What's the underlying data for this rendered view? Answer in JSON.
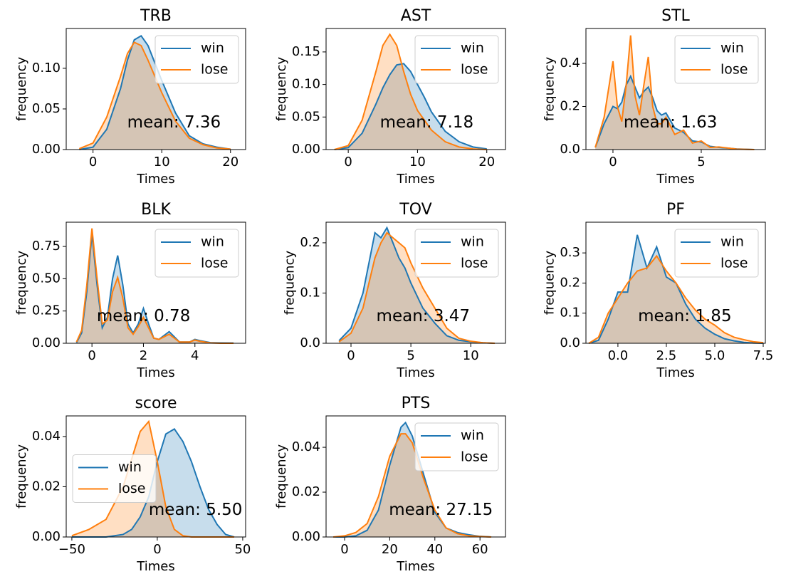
{
  "chart_data": [
    {
      "type": "area",
      "title": "TRB",
      "xlabel": "Times",
      "ylabel": "frequency",
      "annotation": "mean: 7.36",
      "legend": "upper right",
      "xlim": [
        -3.9,
        22.2
      ],
      "ylim": [
        0,
        0.149
      ],
      "xticks": [
        0,
        10,
        20
      ],
      "yticks": [
        {
          "value": 0,
          "label": "0.00"
        },
        0.05,
        {
          "value": 0.1,
          "label": "0.10"
        }
      ],
      "x": [
        -2,
        0,
        2,
        4,
        5,
        6,
        7,
        8,
        10,
        12,
        14,
        16,
        18,
        20
      ],
      "series": [
        {
          "name": "win",
          "color": "#1f77b4",
          "values": [
            0,
            0.003,
            0.025,
            0.075,
            0.11,
            0.135,
            0.14,
            0.128,
            0.085,
            0.045,
            0.017,
            0.007,
            0.003,
            0.0005
          ]
        },
        {
          "name": "lose",
          "color": "#ff7f0e",
          "values": [
            0.001,
            0.008,
            0.04,
            0.09,
            0.118,
            0.132,
            0.128,
            0.11,
            0.07,
            0.035,
            0.014,
            0.006,
            0.002,
            0.0005
          ]
        }
      ]
    },
    {
      "type": "area",
      "title": "AST",
      "xlabel": "Times",
      "ylabel": "frequency",
      "annotation": "mean: 7.18",
      "legend": "upper right",
      "xlim": [
        -3.2,
        22.7
      ],
      "ylim": [
        0,
        0.186
      ],
      "xticks": [
        0,
        10,
        20
      ],
      "yticks": [
        {
          "value": 0,
          "label": "0.00"
        },
        0.05,
        {
          "value": 0.1,
          "label": "0.10"
        },
        0.15
      ],
      "x": [
        -2,
        0,
        2,
        4,
        5,
        6,
        7,
        8,
        9,
        10,
        11,
        12,
        14,
        16,
        18,
        20
      ],
      "series": [
        {
          "name": "win",
          "color": "#1f77b4",
          "values": [
            0,
            0.003,
            0.025,
            0.07,
            0.095,
            0.115,
            0.13,
            0.132,
            0.12,
            0.1,
            0.08,
            0.058,
            0.028,
            0.012,
            0.004,
            0.001
          ]
        },
        {
          "name": "lose",
          "color": "#ff7f0e",
          "values": [
            0,
            0.006,
            0.045,
            0.12,
            0.16,
            0.177,
            0.16,
            0.12,
            0.085,
            0.06,
            0.045,
            0.03,
            0.012,
            0.004,
            0.001,
            0
          ]
        }
      ]
    },
    {
      "type": "area",
      "title": "STL",
      "xlabel": "Times",
      "ylabel": "frequency",
      "annotation": "mean: 1.63",
      "legend": "upper right",
      "xlim": [
        -1.53,
        8.63
      ],
      "ylim": [
        0,
        0.562
      ],
      "xticks": [
        0,
        5
      ],
      "yticks": [
        {
          "value": 0,
          "label": "0.0"
        },
        0.2,
        0.4
      ],
      "x": [
        -1,
        -0.5,
        0,
        0.25,
        0.5,
        0.75,
        1,
        1.25,
        1.5,
        1.75,
        2,
        2.25,
        2.5,
        2.75,
        3,
        3.5,
        4,
        4.5,
        5,
        5.5,
        6,
        7,
        8
      ],
      "series": [
        {
          "name": "win",
          "color": "#1f77b4",
          "values": [
            0.01,
            0.12,
            0.2,
            0.19,
            0.22,
            0.3,
            0.34,
            0.29,
            0.24,
            0.27,
            0.29,
            0.24,
            0.18,
            0.16,
            0.17,
            0.1,
            0.08,
            0.04,
            0.035,
            0.015,
            0.01,
            0.003,
            0
          ]
        },
        {
          "name": "lose",
          "color": "#ff7f0e",
          "values": [
            0.01,
            0.15,
            0.41,
            0.2,
            0.13,
            0.3,
            0.53,
            0.25,
            0.16,
            0.3,
            0.43,
            0.2,
            0.12,
            0.12,
            0.15,
            0.07,
            0.09,
            0.03,
            0.04,
            0.01,
            0.012,
            0.002,
            0
          ]
        }
      ]
    },
    {
      "type": "area",
      "title": "BLK",
      "xlabel": "Times",
      "ylabel": "frequency",
      "annotation": "mean: 0.78",
      "legend": "upper right",
      "xlim": [
        -1.0,
        5.97
      ],
      "ylim": [
        0,
        0.938
      ],
      "xticks": [
        0,
        2,
        4
      ],
      "yticks": [
        {
          "value": 0,
          "label": "0.00"
        },
        0.25,
        {
          "value": 0.5,
          "label": "0.50"
        },
        0.75
      ],
      "x": [
        -0.6,
        -0.4,
        -0.2,
        0,
        0.2,
        0.4,
        0.6,
        0.8,
        1,
        1.2,
        1.4,
        1.6,
        1.8,
        2,
        2.2,
        2.4,
        2.6,
        2.8,
        3,
        3.2,
        3.4,
        3.8,
        4,
        4.2,
        4.6,
        5,
        5.5
      ],
      "series": [
        {
          "name": "win",
          "color": "#1f77b4",
          "values": [
            0.005,
            0.08,
            0.4,
            0.85,
            0.45,
            0.12,
            0.2,
            0.5,
            0.68,
            0.45,
            0.15,
            0.08,
            0.15,
            0.27,
            0.15,
            0.04,
            0.03,
            0.06,
            0.09,
            0.05,
            0.01,
            0.01,
            0.03,
            0.02,
            0.005,
            0.003,
            0.002
          ]
        },
        {
          "name": "lose",
          "color": "#ff7f0e",
          "values": [
            0.01,
            0.1,
            0.45,
            0.89,
            0.5,
            0.15,
            0.18,
            0.4,
            0.51,
            0.35,
            0.12,
            0.07,
            0.13,
            0.2,
            0.12,
            0.04,
            0.03,
            0.05,
            0.07,
            0.04,
            0.01,
            0.01,
            0.025,
            0.015,
            0.003,
            0,
            0
          ]
        }
      ]
    },
    {
      "type": "area",
      "title": "TOV",
      "xlabel": "Times",
      "ylabel": "frequency",
      "annotation": "mean: 3.47",
      "legend": "upper right",
      "xlim": [
        -2.08,
        12.9
      ],
      "ylim": [
        0,
        0.241
      ],
      "xticks": [
        0,
        5,
        10
      ],
      "yticks": [
        {
          "value": 0,
          "label": "0.0"
        },
        0.1,
        0.2
      ],
      "x": [
        -1,
        0,
        1,
        1.5,
        2,
        2.5,
        3,
        3.5,
        4,
        4.5,
        5,
        6,
        7,
        8,
        9,
        10,
        11,
        12
      ],
      "series": [
        {
          "name": "win",
          "color": "#1f77b4",
          "values": [
            0.005,
            0.03,
            0.1,
            0.16,
            0.22,
            0.21,
            0.23,
            0.2,
            0.17,
            0.15,
            0.12,
            0.07,
            0.04,
            0.015,
            0.006,
            0.003,
            0.001,
            0
          ]
        },
        {
          "name": "lose",
          "color": "#ff7f0e",
          "values": [
            0.003,
            0.02,
            0.07,
            0.12,
            0.17,
            0.2,
            0.22,
            0.21,
            0.2,
            0.19,
            0.16,
            0.11,
            0.07,
            0.03,
            0.01,
            0.004,
            0.001,
            0
          ]
        }
      ]
    },
    {
      "type": "area",
      "title": "PF",
      "xlabel": "Times",
      "ylabel": "frequency",
      "annotation": "mean: 1.85",
      "legend": "upper right",
      "xlim": [
        -1.65,
        7.61
      ],
      "ylim": [
        0,
        0.402
      ],
      "xticks": [
        {
          "value": 0,
          "label": "0.0"
        },
        2.5,
        {
          "value": 5,
          "label": "5.0"
        },
        7.5
      ],
      "yticks": [
        {
          "value": 0,
          "label": "0.0"
        },
        0.1,
        0.2,
        0.3
      ],
      "x": [
        -1.5,
        -1,
        -0.5,
        0,
        0.5,
        1,
        1.5,
        2,
        2.5,
        3,
        3.5,
        4,
        4.5,
        5,
        5.5,
        6,
        6.5,
        7,
        7.5
      ],
      "series": [
        {
          "name": "win",
          "color": "#1f77b4",
          "values": [
            0,
            0.01,
            0.08,
            0.17,
            0.17,
            0.36,
            0.25,
            0.32,
            0.22,
            0.2,
            0.13,
            0.08,
            0.05,
            0.03,
            0.015,
            0.008,
            0.003,
            0.001,
            0
          ]
        },
        {
          "name": "lose",
          "color": "#ff7f0e",
          "values": [
            0,
            0.02,
            0.1,
            0.15,
            0.2,
            0.24,
            0.25,
            0.29,
            0.24,
            0.2,
            0.15,
            0.11,
            0.08,
            0.06,
            0.035,
            0.02,
            0.012,
            0.005,
            0.002
          ]
        }
      ]
    },
    {
      "type": "area",
      "title": "score",
      "xlabel": "Times",
      "ylabel": "frequency",
      "annotation": "mean: 5.50",
      "legend": "center left",
      "xlim": [
        -53.3,
        51.7
      ],
      "ylim": [
        0,
        0.0482
      ],
      "xticks": [
        {
          "value": -50,
          "label": "−50"
        },
        0,
        50
      ],
      "yticks": [
        {
          "value": 0,
          "label": "0.00"
        },
        0.02,
        0.04
      ],
      "x": [
        -50,
        -40,
        -30,
        -20,
        -15,
        -10,
        -5,
        0,
        5,
        10,
        15,
        20,
        25,
        30,
        35,
        40,
        45
      ],
      "series": [
        {
          "name": "win",
          "color": "#1f77b4",
          "values": [
            0,
            0,
            0,
            0.001,
            0.003,
            0.008,
            0.016,
            0.03,
            0.041,
            0.043,
            0.038,
            0.03,
            0.02,
            0.011,
            0.005,
            0.001,
            0
          ]
        },
        {
          "name": "lose",
          "color": "#ff7f0e",
          "values": [
            0.0005,
            0.003,
            0.007,
            0.02,
            0.031,
            0.042,
            0.046,
            0.03,
            0.012,
            0.003,
            0.0005,
            0,
            0,
            0,
            0,
            0,
            0
          ]
        }
      ]
    },
    {
      "type": "area",
      "title": "PTS",
      "xlabel": "Times",
      "ylabel": "frequency",
      "annotation": "mean: 27.15",
      "legend": "upper right",
      "xlim": [
        -8.2,
        71.3
      ],
      "ylim": [
        0,
        0.054
      ],
      "xticks": [
        0,
        20,
        40,
        60
      ],
      "yticks": [
        {
          "value": 0,
          "label": "0.00"
        },
        0.02,
        0.04
      ],
      "x": [
        -5,
        0,
        5,
        10,
        15,
        20,
        25,
        27,
        30,
        35,
        40,
        45,
        50,
        55,
        60,
        65
      ],
      "series": [
        {
          "name": "win",
          "color": "#1f77b4",
          "values": [
            0,
            0,
            0.0005,
            0.003,
            0.012,
            0.032,
            0.049,
            0.051,
            0.045,
            0.028,
            0.011,
            0.004,
            0.002,
            0.001,
            0.0003,
            0
          ]
        },
        {
          "name": "lose",
          "color": "#ff7f0e",
          "values": [
            0,
            0.0005,
            0.002,
            0.006,
            0.018,
            0.036,
            0.046,
            0.046,
            0.042,
            0.026,
            0.012,
            0.004,
            0.0015,
            0.0005,
            0.0002,
            0
          ]
        }
      ]
    }
  ]
}
